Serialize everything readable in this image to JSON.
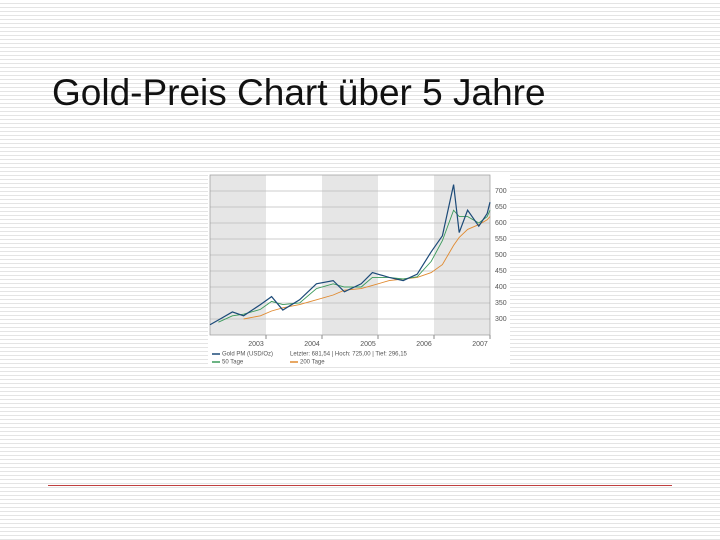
{
  "slide": {
    "title": "Gold-Preis Chart über 5 Jahre"
  },
  "chart_data": {
    "type": "line",
    "x": [
      2002.0,
      2002.15,
      2002.4,
      2002.6,
      2002.9,
      2003.1,
      2003.3,
      2003.6,
      2003.9,
      2004.2,
      2004.4,
      2004.7,
      2004.9,
      2005.2,
      2005.45,
      2005.7,
      2005.95,
      2006.15,
      2006.35,
      2006.45,
      2006.6,
      2006.8,
      2006.95,
      2007.0
    ],
    "series": [
      {
        "name": "Gold PM (USD/Oz)",
        "color": "#1c4a78",
        "values": [
          282,
          297,
          322,
          310,
          345,
          370,
          328,
          360,
          410,
          420,
          385,
          410,
          445,
          430,
          420,
          440,
          510,
          560,
          720,
          570,
          640,
          590,
          630,
          665
        ]
      },
      {
        "name": "50 Tage",
        "color": "#3a9a5a",
        "values": [
          null,
          290,
          310,
          315,
          330,
          355,
          345,
          350,
          395,
          410,
          400,
          400,
          430,
          430,
          425,
          432,
          480,
          545,
          640,
          620,
          620,
          600,
          620,
          640
        ]
      },
      {
        "name": "200 Tage",
        "color": "#e08a30",
        "values": [
          null,
          null,
          null,
          300,
          310,
          325,
          335,
          345,
          360,
          375,
          390,
          395,
          405,
          420,
          425,
          430,
          445,
          470,
          530,
          555,
          580,
          595,
          610,
          620
        ]
      }
    ],
    "annotation": "Letzter: 681,54 | Hoch: 725,00 | Tief: 296,15",
    "xlim": [
      2002,
      2007
    ],
    "xticks": [
      2003,
      2004,
      2005,
      2006,
      2007
    ],
    "ylim": [
      250,
      750
    ],
    "yticks": [
      300,
      350,
      400,
      450,
      500,
      550,
      600,
      650,
      700
    ],
    "grid": true,
    "shaded_years": [
      2002,
      2004,
      2006
    ],
    "band_color": "#e6e6e6"
  }
}
